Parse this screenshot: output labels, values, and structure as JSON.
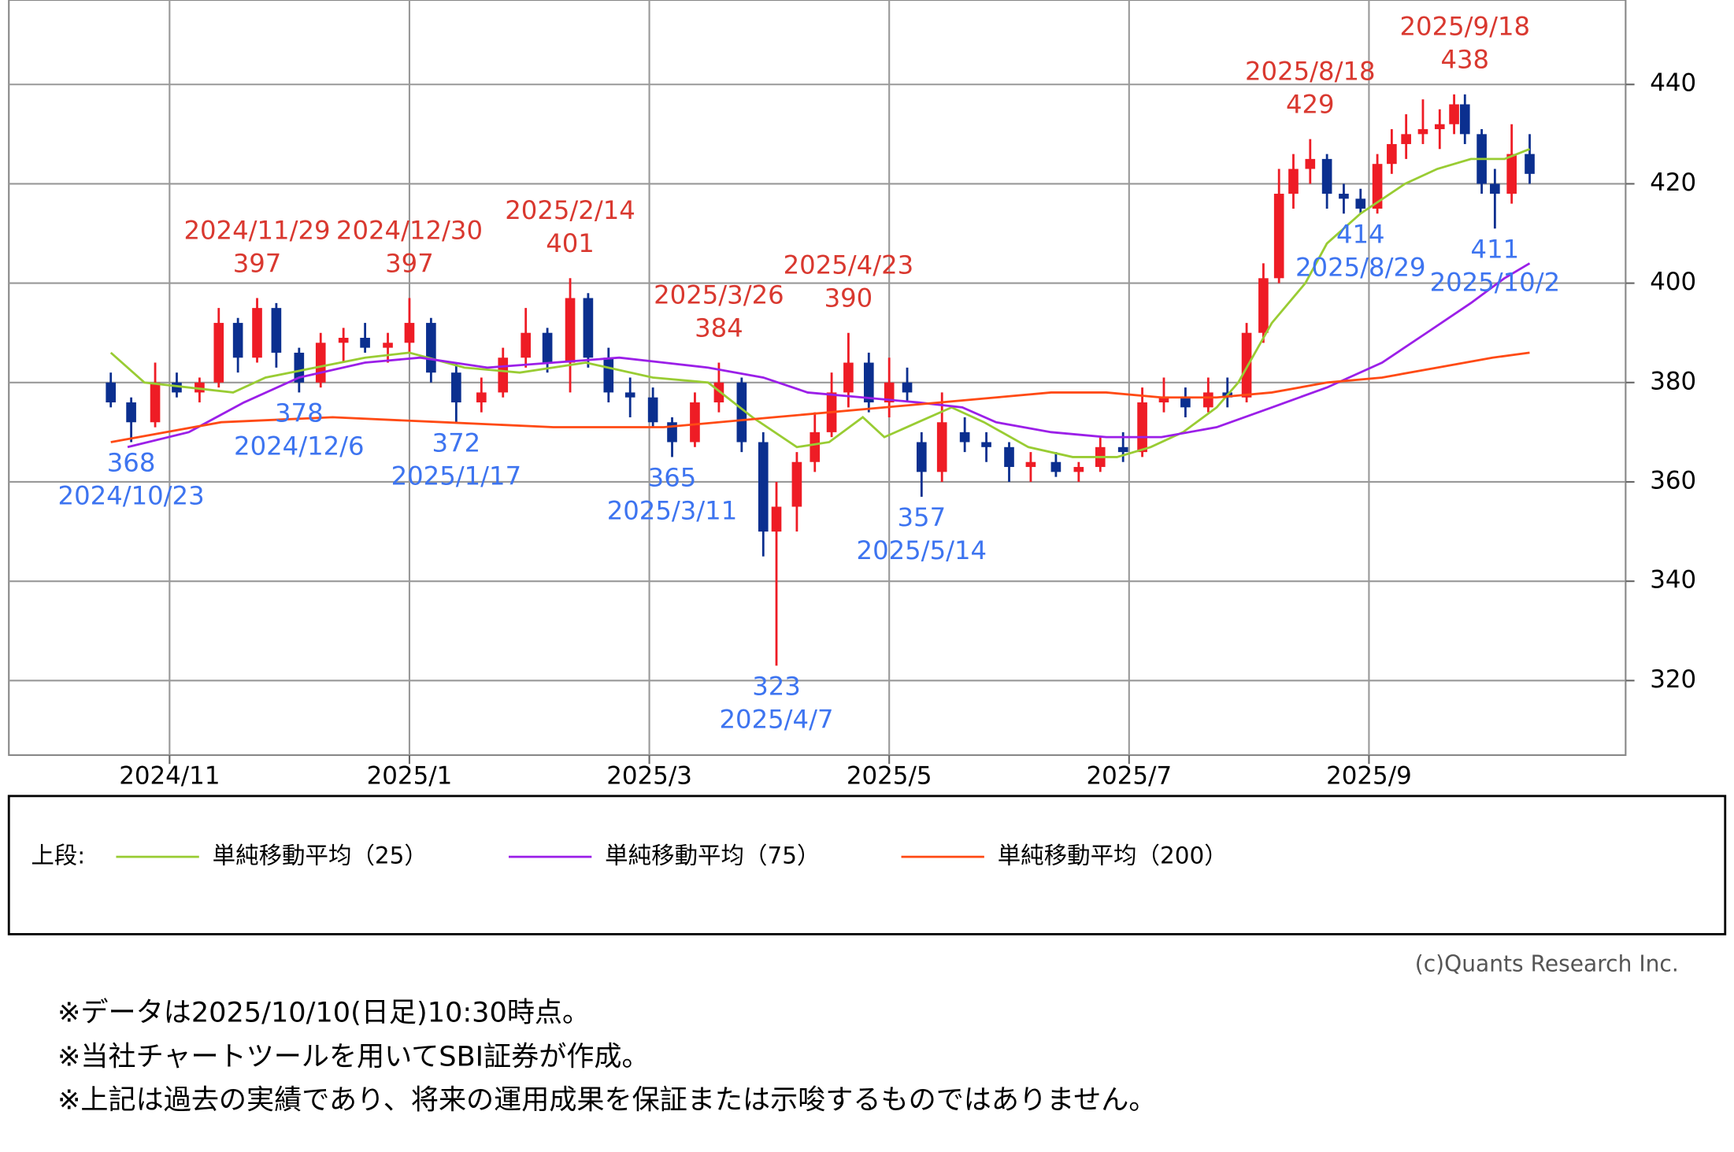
{
  "chart_data": {
    "type": "candlestick",
    "xlim": [
      9.66,
      23.14
    ],
    "ylim": [
      305,
      457
    ],
    "xticks": [
      {
        "value": 11,
        "label": "2024/11"
      },
      {
        "value": 13,
        "label": "2025/1"
      },
      {
        "value": 15,
        "label": "2025/3"
      },
      {
        "value": 17,
        "label": "2025/5"
      },
      {
        "value": 19,
        "label": "2025/7"
      },
      {
        "value": 21,
        "label": "2025/9"
      }
    ],
    "yticks": [
      320,
      340,
      360,
      380,
      400,
      420,
      440
    ],
    "grid": true,
    "up_color": "#ee1c25",
    "down_color": "#0b2f8f",
    "candles": {
      "x": [
        10.51,
        10.68,
        10.88,
        11.06,
        11.25,
        11.41,
        11.57,
        11.73,
        11.89,
        12.08,
        12.26,
        12.45,
        12.63,
        12.82,
        13.0,
        13.18,
        13.39,
        13.6,
        13.78,
        13.97,
        14.15,
        14.34,
        14.49,
        14.66,
        14.84,
        15.03,
        15.19,
        15.38,
        15.58,
        15.77,
        15.95,
        16.06,
        16.23,
        16.38,
        16.52,
        16.66,
        16.83,
        17.0,
        17.15,
        17.27,
        17.44,
        17.63,
        17.81,
        18.0,
        18.18,
        18.39,
        18.58,
        18.76,
        18.95,
        19.11,
        19.29,
        19.47,
        19.66,
        19.82,
        19.98,
        20.12,
        20.25,
        20.37,
        20.51,
        20.65,
        20.79,
        20.93,
        21.07,
        21.19,
        21.31,
        21.45,
        21.59,
        21.71,
        21.8,
        21.94,
        22.05,
        22.19,
        22.34
      ],
      "open": [
        380,
        376,
        372,
        380,
        378,
        380,
        392,
        385,
        395,
        386,
        380,
        388,
        389,
        387,
        388,
        392,
        382,
        376,
        378,
        385,
        390,
        384,
        397,
        385,
        378,
        377,
        372,
        368,
        376,
        380,
        368,
        350,
        355,
        364,
        370,
        378,
        384,
        376,
        380,
        368,
        362,
        370,
        368,
        367,
        363,
        364,
        362,
        363,
        367,
        366,
        376,
        377,
        375,
        378,
        377,
        390,
        401,
        418,
        423,
        425,
        418,
        417,
        415,
        424,
        428,
        430,
        431,
        432,
        436,
        430,
        420,
        418,
        426
      ],
      "high": [
        382,
        377,
        384,
        382,
        381,
        395,
        393,
        397,
        396,
        387,
        390,
        391,
        392,
        390,
        397,
        393,
        384,
        381,
        387,
        395,
        391,
        401,
        398,
        387,
        381,
        379,
        373,
        378,
        384,
        381,
        370,
        360,
        366,
        374,
        382,
        390,
        386,
        385,
        383,
        370,
        378,
        373,
        370,
        368,
        366,
        366,
        364,
        369,
        370,
        379,
        381,
        379,
        381,
        381,
        392,
        404,
        423,
        426,
        429,
        426,
        420,
        419,
        426,
        431,
        434,
        437,
        435,
        438,
        438,
        431,
        423,
        432,
        430
      ],
      "low": [
        375,
        368,
        371,
        377,
        376,
        379,
        382,
        384,
        383,
        378,
        379,
        384,
        386,
        384,
        386,
        380,
        372,
        374,
        377,
        383,
        382,
        378,
        383,
        376,
        373,
        371,
        365,
        367,
        374,
        366,
        345,
        323,
        350,
        362,
        369,
        375,
        374,
        373,
        376,
        357,
        360,
        366,
        364,
        360,
        360,
        361,
        360,
        362,
        364,
        365,
        374,
        373,
        374,
        375,
        376,
        388,
        400,
        415,
        420,
        415,
        414,
        414,
        414,
        422,
        425,
        428,
        427,
        430,
        428,
        418,
        411,
        416,
        420
      ],
      "close": [
        376,
        372,
        380,
        378,
        380,
        392,
        385,
        395,
        386,
        380,
        388,
        389,
        387,
        388,
        392,
        382,
        376,
        378,
        385,
        390,
        384,
        397,
        385,
        378,
        377,
        372,
        368,
        376,
        380,
        368,
        350,
        355,
        364,
        370,
        378,
        384,
        376,
        380,
        378,
        362,
        372,
        368,
        367,
        363,
        364,
        362,
        363,
        367,
        366,
        376,
        377,
        375,
        378,
        377,
        390,
        401,
        418,
        423,
        425,
        418,
        417,
        415,
        424,
        428,
        430,
        431,
        432,
        436,
        430,
        420,
        418,
        426,
        422
      ]
    },
    "series": [
      {
        "name": "単純移動平均（25）",
        "color": "#99cc33",
        "x": [
          10.51,
          10.79,
          11.53,
          11.8,
          12.63,
          13.0,
          13.46,
          13.92,
          14.47,
          15.03,
          15.49,
          15.86,
          16.23,
          16.5,
          16.78,
          16.96,
          17.24,
          17.52,
          17.79,
          18.16,
          18.53,
          18.9,
          19.18,
          19.45,
          19.73,
          19.91,
          20.19,
          20.47,
          20.65,
          20.93,
          21.3,
          21.57,
          21.85,
          22.13,
          22.34
        ],
        "values": [
          386,
          380,
          378,
          381,
          385,
          386,
          383,
          382,
          384,
          381,
          380,
          373,
          367,
          368,
          373,
          369,
          372,
          375,
          372,
          367,
          365,
          365,
          367,
          370,
          375,
          380,
          392,
          400,
          408,
          414,
          420,
          423,
          425,
          425,
          427
        ]
      },
      {
        "name": "単純移動平均（75）",
        "color": "#9b1fe8",
        "x": [
          10.65,
          11.16,
          11.62,
          12.08,
          12.63,
          13.09,
          13.65,
          14.2,
          14.75,
          15.12,
          15.49,
          15.95,
          16.32,
          16.78,
          17.24,
          17.61,
          17.89,
          18.35,
          18.81,
          19.27,
          19.73,
          20.19,
          20.65,
          21.11,
          21.48,
          21.85,
          22.13,
          22.34
        ],
        "values": [
          367,
          370,
          376,
          381,
          384,
          385,
          383,
          384,
          385,
          384,
          383,
          381,
          378,
          377,
          376,
          375,
          372,
          370,
          369,
          369,
          371,
          375,
          379,
          384,
          390,
          396,
          401,
          404
        ]
      },
      {
        "name": "単純移動平均（200）",
        "color": "#ff4a14",
        "x": [
          10.51,
          11.43,
          12.36,
          13.28,
          14.2,
          15.12,
          16.04,
          16.96,
          17.89,
          18.35,
          18.81,
          19.27,
          19.73,
          20.19,
          20.65,
          21.11,
          21.57,
          22.03,
          22.34
        ],
        "values": [
          368,
          372,
          373,
          372,
          371,
          371,
          373,
          375,
          377,
          378,
          378,
          377,
          377,
          378,
          380,
          381,
          383,
          385,
          386
        ]
      }
    ],
    "highs": [
      {
        "label": "2024/11/29",
        "value": 397,
        "x": 11.73
      },
      {
        "label": "2024/12/30",
        "value": 397,
        "x": 13.0
      },
      {
        "label": "2025/2/14",
        "value": 401,
        "x": 14.34
      },
      {
        "label": "2025/3/26",
        "value": 384,
        "x": 15.58
      },
      {
        "label": "2025/4/23",
        "value": 390,
        "x": 16.66
      },
      {
        "label": "2025/8/18",
        "value": 429,
        "x": 20.51
      },
      {
        "label": "2025/9/18",
        "value": 438,
        "x": 21.8
      }
    ],
    "lows": [
      {
        "label": "2024/10/23",
        "value": 368,
        "x": 10.68
      },
      {
        "label": "2024/12/6",
        "value": 378,
        "x": 12.08
      },
      {
        "label": "2025/1/17",
        "value": 372,
        "x": 13.39
      },
      {
        "label": "2025/3/11",
        "value": 365,
        "x": 15.19
      },
      {
        "label": "2025/4/7",
        "value": 323,
        "x": 16.06
      },
      {
        "label": "2025/5/14",
        "value": 357,
        "x": 17.27
      },
      {
        "label": "2025/8/29",
        "value": 414,
        "x": 20.93
      },
      {
        "label": "2025/10/2",
        "value": 411,
        "x": 22.05
      }
    ],
    "legend_title": "上段:",
    "credit": "(c)Quants Research Inc.",
    "notes": [
      "※データは2025/10/10(日足)10:30時点。",
      "※当社チャートツールを用いてSBI証券が作成。",
      "※上記は過去の実績であり、将来の運用成果を保証または示唆するものではありません。"
    ]
  }
}
